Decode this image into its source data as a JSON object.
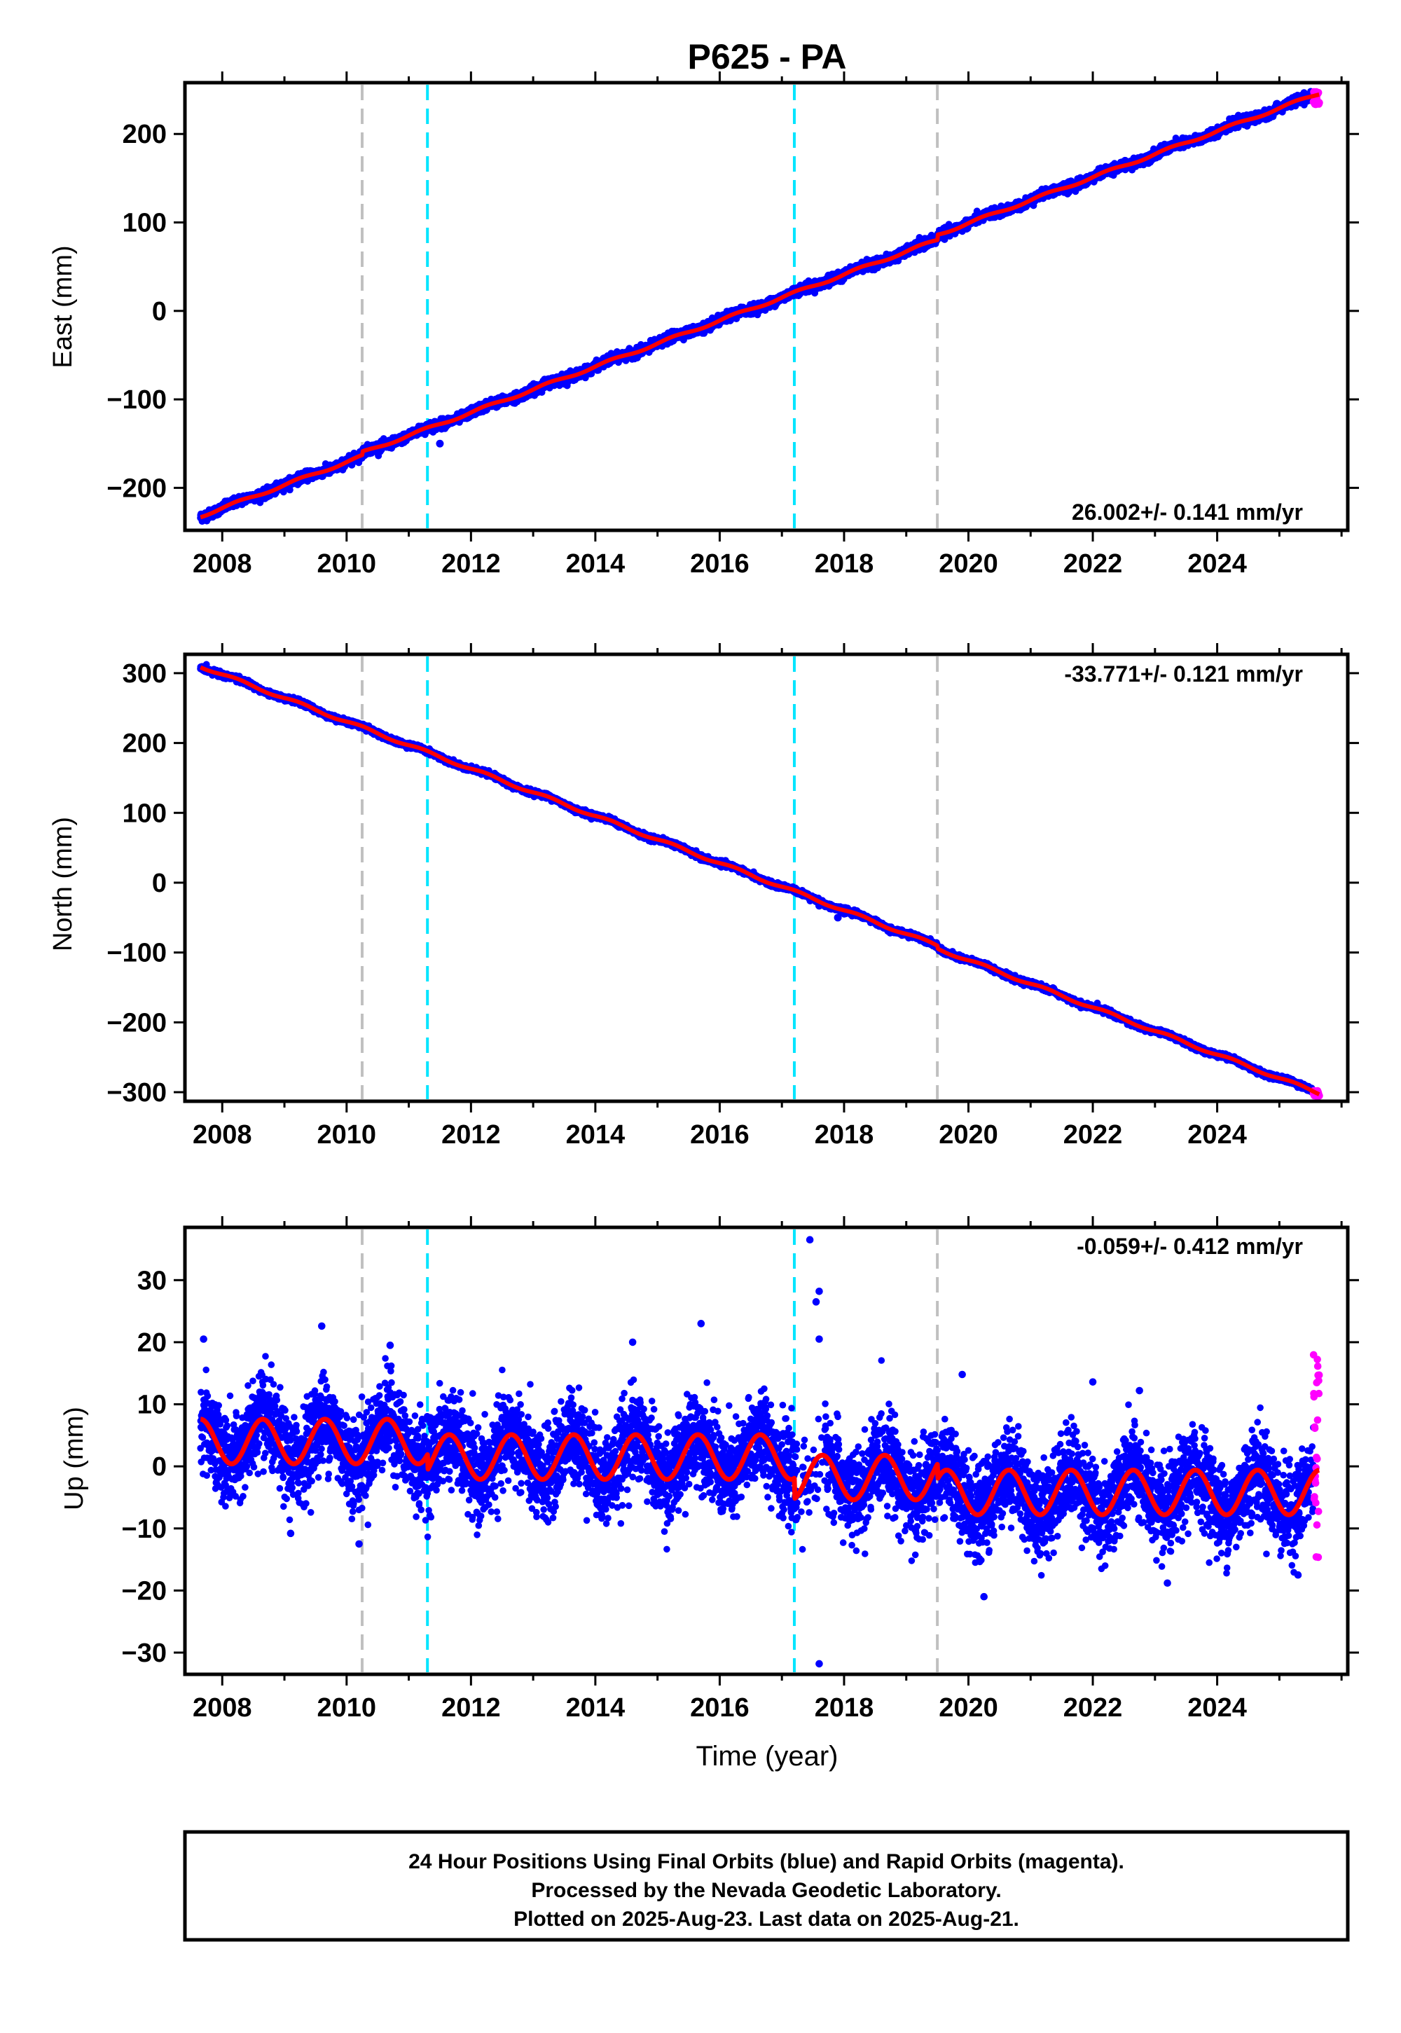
{
  "title": "P625 - PA",
  "chart_data": [
    {
      "type": "scatter",
      "ylabel": "East (mm)",
      "xlabel": "",
      "xlim": [
        2007.4,
        2026.1
      ],
      "ylim": [
        -248,
        258
      ],
      "yticks": [
        -200,
        -100,
        0,
        100,
        200
      ],
      "xticks": [
        2008,
        2010,
        2012,
        2014,
        2016,
        2018,
        2020,
        2022,
        2024
      ],
      "rate_label": "26.002+/- 0.141 mm/yr",
      "rate_position": "bottom-right",
      "trend": {
        "t0": 2007.65,
        "y0": -232,
        "slope": 26.002,
        "seasonal_amplitude": 1.5,
        "scatter": 2.5
      },
      "steps": [
        {
          "t": 2010.25,
          "dy": 4
        },
        {
          "t": 2019.5,
          "dy": 6
        }
      ],
      "outliers": [
        {
          "x": 2017.75,
          "y": 40
        },
        {
          "x": 2011.5,
          "y": -150
        },
        {
          "x": 2024.4,
          "y": 215
        }
      ],
      "rapid_points": {
        "t_start": 2025.55,
        "t_end": 2025.64,
        "ymin": 233,
        "ymax": 248
      },
      "series": [
        {
          "name": "Final Orbits",
          "color": "#0000ff",
          "kind": "points"
        },
        {
          "name": "Rapid Orbits",
          "color": "#ff00ff",
          "kind": "points"
        },
        {
          "name": "Model",
          "color": "#ff0000",
          "kind": "line"
        }
      ],
      "vlines": [
        {
          "x": 2010.25,
          "color": "#c0c0c0"
        },
        {
          "x": 2011.3,
          "color": "#00e5ff"
        },
        {
          "x": 2017.2,
          "color": "#00e5ff"
        },
        {
          "x": 2019.5,
          "color": "#c0c0c0"
        }
      ]
    },
    {
      "type": "scatter",
      "ylabel": "North (mm)",
      "xlabel": "",
      "xlim": [
        2007.4,
        2026.1
      ],
      "ylim": [
        -313,
        327
      ],
      "yticks": [
        -300,
        -200,
        -100,
        0,
        100,
        200,
        300
      ],
      "xticks": [
        2008,
        2010,
        2012,
        2014,
        2016,
        2018,
        2020,
        2022,
        2024
      ],
      "rate_label": "-33.771+/- 0.121 mm/yr",
      "rate_position": "top-right",
      "trend": {
        "t0": 2007.65,
        "y0": 310,
        "slope": -33.771,
        "seasonal_amplitude": 2.0,
        "scatter": 1.8
      },
      "steps": [
        {
          "t": 2019.5,
          "dy": -4
        }
      ],
      "outliers": [
        {
          "x": 2017.6,
          "y": -33
        },
        {
          "x": 2017.9,
          "y": -50
        }
      ],
      "rapid_points": {
        "t_start": 2025.55,
        "t_end": 2025.64,
        "ymin": -306,
        "ymax": -298
      },
      "series": [
        {
          "name": "Final Orbits",
          "color": "#0000ff",
          "kind": "points"
        },
        {
          "name": "Rapid Orbits",
          "color": "#ff00ff",
          "kind": "points"
        },
        {
          "name": "Model",
          "color": "#ff0000",
          "kind": "line"
        }
      ],
      "vlines": [
        {
          "x": 2010.25,
          "color": "#c0c0c0"
        },
        {
          "x": 2011.3,
          "color": "#00e5ff"
        },
        {
          "x": 2017.2,
          "color": "#00e5ff"
        },
        {
          "x": 2019.5,
          "color": "#c0c0c0"
        }
      ]
    },
    {
      "type": "scatter",
      "ylabel": "Up (mm)",
      "xlabel": "Time (year)",
      "xlim": [
        2007.4,
        2026.1
      ],
      "ylim": [
        -33.5,
        38.5
      ],
      "yticks": [
        -30,
        -20,
        -10,
        0,
        10,
        20,
        30
      ],
      "xticks": [
        2008,
        2010,
        2012,
        2014,
        2016,
        2018,
        2020,
        2022,
        2024
      ],
      "rate_label": "-0.059+/- 0.412 mm/yr",
      "rate_position": "top-right",
      "model_segments": [
        {
          "t_start": 2007.65,
          "t_end": 2011.3,
          "mean": 4.0
        },
        {
          "t_start": 2011.3,
          "t_end": 2017.2,
          "mean": 1.5
        },
        {
          "t_start": 2017.2,
          "t_end": 2019.5,
          "mean": -1.8
        },
        {
          "t_start": 2019.5,
          "t_end": 2025.64,
          "mean": -4.2
        }
      ],
      "seasonal": {
        "amplitude": 3.6,
        "peak_phase": 0.65
      },
      "scatter": 3.6,
      "outliers": [
        {
          "x": 2017.45,
          "y": 36.5
        },
        {
          "x": 2017.6,
          "y": 28.2
        },
        {
          "x": 2017.55,
          "y": 26.5
        },
        {
          "x": 2017.6,
          "y": 20.5
        },
        {
          "x": 2017.6,
          "y": -31.8
        },
        {
          "x": 2009.6,
          "y": 22.6
        },
        {
          "x": 2015.7,
          "y": 23.0
        },
        {
          "x": 2014.6,
          "y": 20.0
        },
        {
          "x": 2007.7,
          "y": 20.5
        },
        {
          "x": 2010.7,
          "y": 19.5
        },
        {
          "x": 2020.25,
          "y": -21.0
        },
        {
          "x": 2023.2,
          "y": -18.8
        },
        {
          "x": 2025.3,
          "y": -17.5
        },
        {
          "x": 2019.9,
          "y": 14.8
        },
        {
          "x": 2022.0,
          "y": 13.6
        },
        {
          "x": 2022.75,
          "y": 12.2
        },
        {
          "x": 2009.1,
          "y": -10.8
        },
        {
          "x": 2010.2,
          "y": -12.5
        }
      ],
      "rapid_points": {
        "t_start": 2025.55,
        "t_end": 2025.64,
        "ymin": -16.5,
        "ymax": 18.0
      },
      "series": [
        {
          "name": "Final Orbits",
          "color": "#0000ff",
          "kind": "points"
        },
        {
          "name": "Rapid Orbits",
          "color": "#ff00ff",
          "kind": "points"
        },
        {
          "name": "Model",
          "color": "#ff0000",
          "kind": "line"
        }
      ],
      "vlines": [
        {
          "x": 2010.25,
          "color": "#c0c0c0"
        },
        {
          "x": 2011.3,
          "color": "#00e5ff"
        },
        {
          "x": 2017.2,
          "color": "#00e5ff"
        },
        {
          "x": 2019.5,
          "color": "#c0c0c0"
        }
      ]
    }
  ],
  "footer": {
    "line1": "24 Hour Positions Using Final Orbits (blue) and Rapid Orbits (magenta).",
    "line2": "Processed by the Nevada Geodetic Laboratory.",
    "line3": "Plotted on 2025-Aug-23. Last data on 2025-Aug-21."
  }
}
